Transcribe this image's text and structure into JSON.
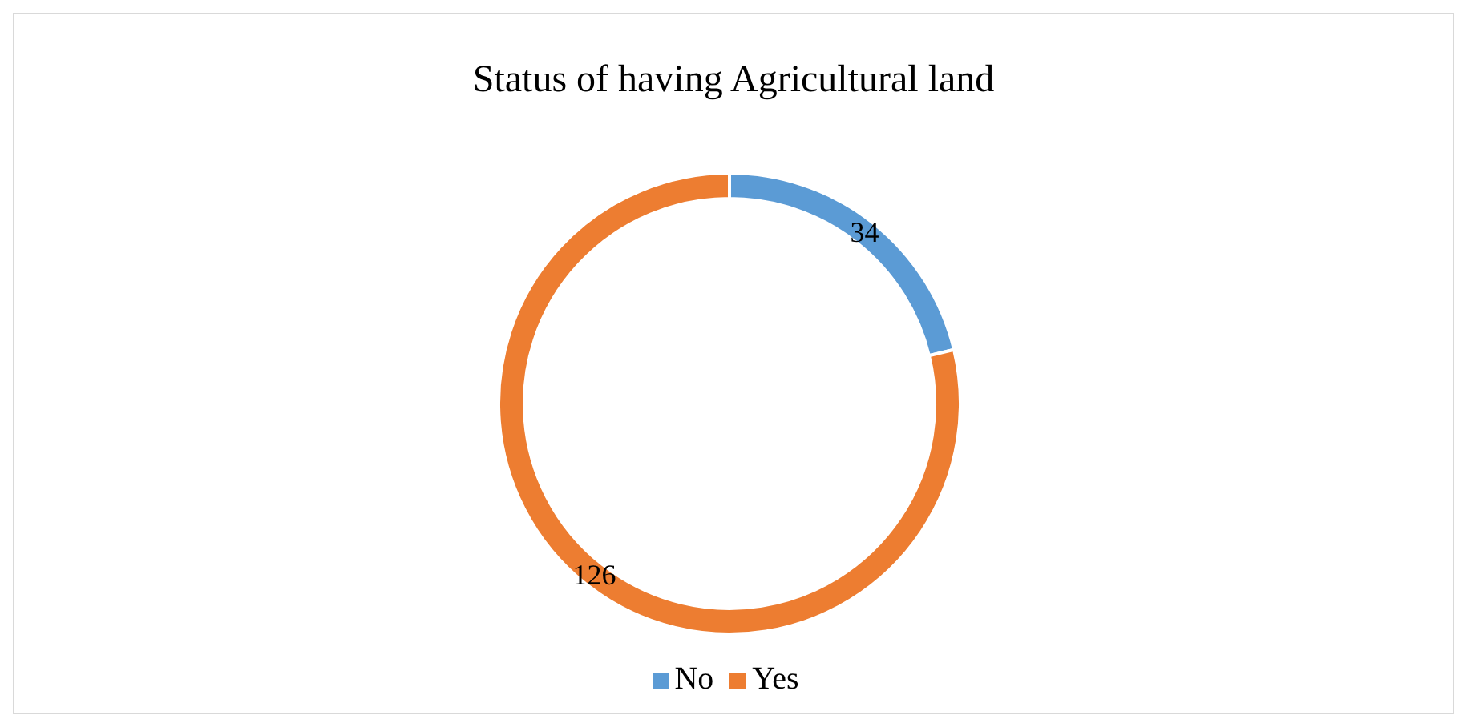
{
  "chart_data": {
    "type": "donut",
    "title": "Status of having Agricultural land",
    "categories": [
      "No",
      "Yes"
    ],
    "values": [
      34,
      126
    ],
    "colors": [
      "#5b9bd5",
      "#ed7d31"
    ],
    "data_labels": true,
    "legend": "bottom"
  }
}
